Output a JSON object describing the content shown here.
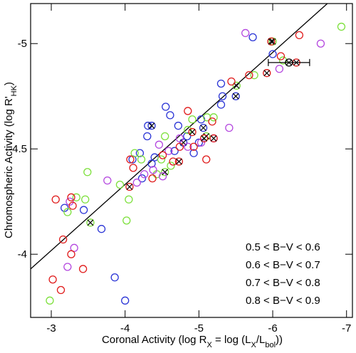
{
  "chart_data": {
    "type": "scatter",
    "x_label": [
      {
        "text": "Coronal Activity (log R"
      },
      {
        "text": "X",
        "sub": true
      },
      {
        "text": " = log (L"
      },
      {
        "text": "X",
        "sub": true
      },
      {
        "text": "/L"
      },
      {
        "text": "bol",
        "sub": true
      },
      {
        "text": "))"
      }
    ],
    "y_label": [
      {
        "text": "Chromospheric Activity (log R'"
      },
      {
        "text": "HK",
        "sub": true
      },
      {
        "text": ")"
      }
    ],
    "xlim": [
      -2.72,
      -7.08
    ],
    "ylim": [
      -3.7,
      -5.19
    ],
    "xticks": [
      -3,
      -4,
      -5,
      -6,
      -7
    ],
    "yticks": [
      -4,
      -4.5,
      -5
    ],
    "legend": "lower right",
    "series": [
      {
        "name": "0.5 < B−V < 0.6",
        "color": "#2b35d6",
        "x": [
          -5.73,
          -6.0,
          -5.3,
          -5.32,
          -4.55,
          -4.61,
          -4.2,
          -4.3,
          -4.84,
          -4.36,
          -4.67,
          -4.23,
          -3.44,
          -3.18,
          -3.68,
          -3.86,
          -4.0,
          -4.72,
          -5.0,
          -4.93,
          -4.31,
          -5.03,
          -4.1,
          -4.4,
          -5.3
        ],
        "y": [
          -5.03,
          -4.95,
          -4.71,
          -4.75,
          -4.7,
          -4.66,
          -4.48,
          -4.56,
          -4.56,
          -4.43,
          -4.49,
          -4.36,
          -4.21,
          -4.22,
          -4.12,
          -3.89,
          -3.78,
          -4.61,
          -4.53,
          -4.48,
          -4.61,
          -4.64,
          -4.45,
          -4.46,
          -4.81
        ],
        "crossed": {
          "x": [
            -4.36,
            -4.79,
            -5.5,
            -5.06
          ],
          "y": [
            -4.61,
            -4.53,
            -4.75,
            -4.6
          ]
        }
      },
      {
        "name": "0.6 < B−V < 0.7",
        "color": "#7de03c",
        "x": [
          -6.93,
          -6.14,
          -5.75,
          -5.11,
          -5.2,
          -4.91,
          -4.54,
          -4.13,
          -4.22,
          -3.49,
          -3.46,
          -3.34,
          -3.22,
          -4.02,
          -4.05,
          -3.93,
          -2.98,
          -4.62,
          -4.49,
          -4.43,
          -4.85
        ],
        "y": [
          -5.08,
          -4.92,
          -4.85,
          -4.65,
          -4.65,
          -4.64,
          -4.56,
          -4.48,
          -4.45,
          -4.39,
          -4.26,
          -4.27,
          -4.2,
          -4.16,
          -4.26,
          -4.33,
          -3.78,
          -4.42,
          -4.45,
          -4.38,
          -4.59
        ],
        "crossed": {
          "x": [
            -6.0,
            -5.51,
            -4.54,
            -3.53,
            -5.1
          ],
          "y": [
            -5.01,
            -4.8,
            -4.39,
            -4.15,
            -4.56
          ]
        }
      },
      {
        "name": "0.7 < B−V < 0.8",
        "color": "#b447df",
        "x": [
          -5.63,
          -6.65,
          -6.09,
          -5.41,
          -5.2,
          -5.03,
          -4.74,
          -4.59,
          -4.38,
          -4.26,
          -4.16,
          -3.76,
          -3.25,
          -3.31,
          -3.22,
          -4.51,
          -4.46,
          -4.85
        ],
        "y": [
          -5.05,
          -5.0,
          -4.88,
          -4.6,
          -4.55,
          -4.53,
          -4.55,
          -4.49,
          -4.4,
          -4.38,
          -4.34,
          -4.35,
          -4.25,
          -4.03,
          -3.94,
          -4.37,
          -4.52,
          -4.51
        ],
        "crossed": {
          "x": [],
          "y": []
        }
      },
      {
        "name": "0.8 < B−V < 0.9",
        "color": "#e01b1b",
        "x": [
          -6.36,
          -6.11,
          -5.68,
          -5.44,
          -4.85,
          -5.18,
          -4.74,
          -4.51,
          -4.07,
          -4.11,
          -3.27,
          -3.06,
          -3.29,
          -3.16,
          -3.27,
          -3.02,
          -3.13,
          -3.43,
          -5.1,
          -4.93,
          -4.37,
          -4.65
        ],
        "y": [
          -5.04,
          -4.94,
          -4.85,
          -4.82,
          -4.68,
          -4.63,
          -4.51,
          -4.47,
          -4.45,
          -4.41,
          -4.27,
          -4.26,
          -4.23,
          -4.07,
          -4.0,
          -3.88,
          -3.83,
          -3.93,
          -4.45,
          -4.51,
          -4.36,
          -4.44
        ],
        "crossed": {
          "x": [
            -5.98,
            -6.32,
            -5.92,
            -4.91,
            -4.06,
            -5.07,
            -4.73,
            -5.2
          ],
          "y": [
            -5.01,
            -4.91,
            -4.86,
            -4.58,
            -4.32,
            -4.55,
            -4.44,
            -4.55
          ]
        }
      }
    ],
    "errorbar_point": {
      "x": -6.22,
      "y": -4.91,
      "xerr": 0.28,
      "color": "#000000"
    },
    "fit_line": {
      "x": [
        -2.72,
        -6.74
      ],
      "y": [
        -3.93,
        -5.19
      ],
      "color": "#000000"
    }
  }
}
